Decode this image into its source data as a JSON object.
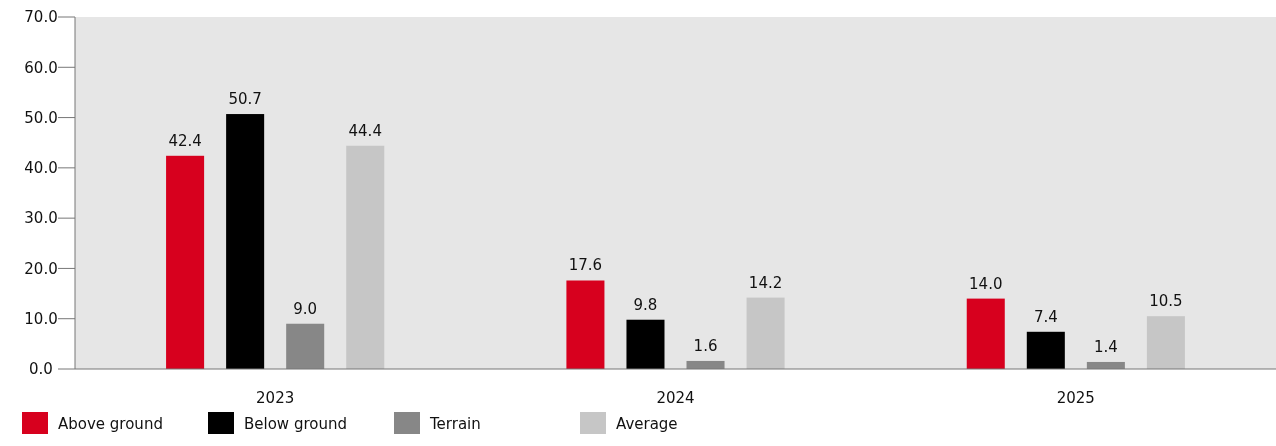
{
  "chart_data": {
    "type": "bar",
    "categories": [
      "2023",
      "2024",
      "2025"
    ],
    "series": [
      {
        "name": "Above ground",
        "color": "#d7001e",
        "values": [
          42.4,
          17.6,
          14.0
        ],
        "value_labels": [
          "42.4",
          "17.6",
          "14.0"
        ]
      },
      {
        "name": "Below ground",
        "color": "#000000",
        "values": [
          50.7,
          9.8,
          7.4
        ],
        "value_labels": [
          "50.7",
          "9.8",
          "7.4"
        ]
      },
      {
        "name": "Terrain",
        "color": "#878787",
        "values": [
          9.0,
          1.6,
          1.4
        ],
        "value_labels": [
          "9.0",
          "1.6",
          "1.4"
        ]
      },
      {
        "name": "Average",
        "color": "#c6c6c6",
        "values": [
          44.4,
          14.2,
          10.5
        ],
        "value_labels": [
          "44.4",
          "14.2",
          "10.5"
        ]
      }
    ],
    "ylim": [
      0,
      70
    ],
    "yticks": [
      {
        "value": 0,
        "label": "0.0"
      },
      {
        "value": 10,
        "label": "10.0"
      },
      {
        "value": 20,
        "label": "20.0"
      },
      {
        "value": 30,
        "label": "30.0"
      },
      {
        "value": 40,
        "label": "40.0"
      },
      {
        "value": 50,
        "label": "50.0"
      },
      {
        "value": 60,
        "label": "60.0"
      },
      {
        "value": 70,
        "label": "70.0"
      }
    ],
    "data_labels": true,
    "legend": "bottom left"
  }
}
